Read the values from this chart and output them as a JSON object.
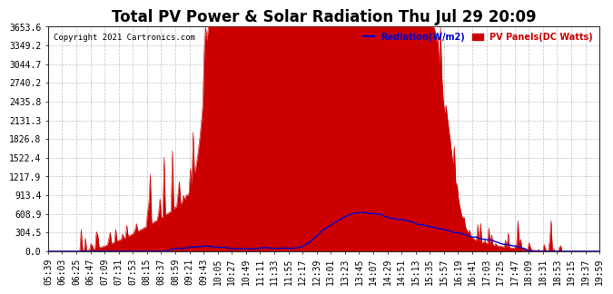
{
  "title": "Total PV Power & Solar Radiation Thu Jul 29 20:09",
  "copyright": "Copyright 2021 Cartronics.com",
  "legend_radiation": "Radiation(W/m2)",
  "legend_pv": "PV Panels(DC Watts)",
  "yticks": [
    0.0,
    304.5,
    608.9,
    913.4,
    1217.9,
    1522.4,
    1826.8,
    2131.3,
    2435.8,
    2740.2,
    3044.7,
    3349.2,
    3653.6
  ],
  "ymax": 3653.6,
  "bg_color": "#ffffff",
  "plot_bg_color": "#ffffff",
  "grid_color": "#aaaaaa",
  "pv_fill_color": "#cc0000",
  "pv_line_color": "#cc0000",
  "radiation_color": "#0000cc",
  "title_fontsize": 12,
  "tick_fontsize": 7,
  "xtick_labels": [
    "05:39",
    "06:03",
    "06:25",
    "06:47",
    "07:09",
    "07:31",
    "07:53",
    "08:15",
    "08:37",
    "08:59",
    "09:21",
    "09:43",
    "10:05",
    "10:27",
    "10:49",
    "11:11",
    "11:33",
    "11:55",
    "12:17",
    "12:39",
    "13:01",
    "13:23",
    "13:45",
    "14:07",
    "14:29",
    "14:51",
    "15:13",
    "15:35",
    "15:57",
    "16:19",
    "16:41",
    "17:03",
    "17:25",
    "17:47",
    "18:09",
    "18:31",
    "18:53",
    "19:15",
    "19:37",
    "19:59"
  ]
}
